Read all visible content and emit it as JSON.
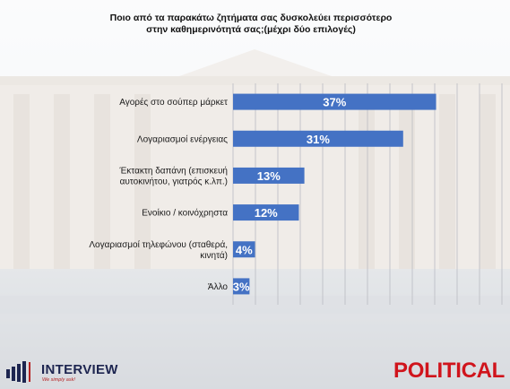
{
  "chart_data": {
    "type": "bar",
    "orientation": "horizontal",
    "title": "Ποιο από τα παρακάτω ζητήματα σας δυσκολεύει περισσότερο στην καθημερινότητά σας;(μέχρι δύο επιλογές)",
    "categories": [
      "Αγορές στο σούπερ μάρκετ",
      "Λογαριασμοί ενέργειας",
      "Έκτακτη δαπάνη (επισκευή αυτοκινήτου, γιατρός κ.λπ.)",
      "Ενοίκιο / κοινόχρηστα",
      "Λογαριασμοί τηλεφώνου (σταθερά, κινητά)",
      "Άλλο"
    ],
    "values": [
      37,
      31,
      13,
      12,
      4,
      3
    ],
    "value_labels": [
      "37%",
      "31%",
      "13%",
      "12%",
      "4%",
      "3%"
    ],
    "xlim": [
      0,
      50
    ],
    "grid": true,
    "bar_color": "#4472c4"
  },
  "branding": {
    "left_logo": "INTERVIEW",
    "left_tagline": "We simply ask!",
    "right_logo": "POLITICAL"
  }
}
